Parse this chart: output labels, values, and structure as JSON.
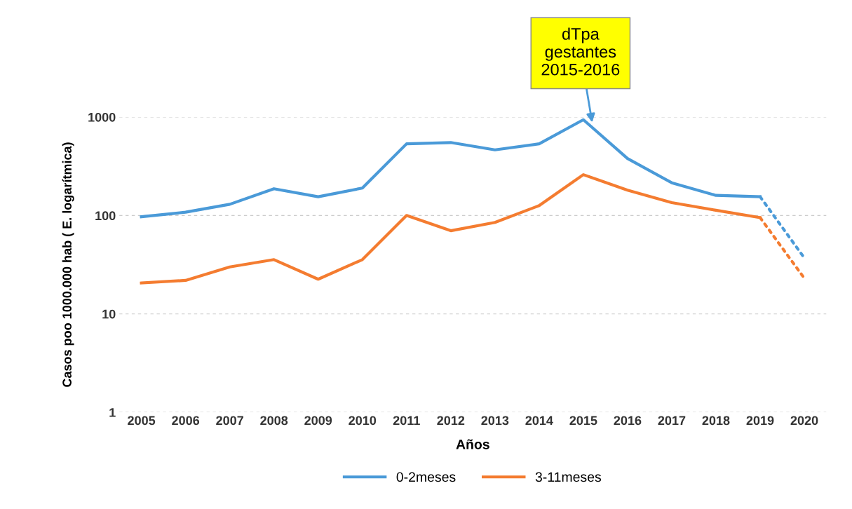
{
  "chart_data": {
    "type": "line",
    "xlabel": "Años",
    "ylabel": "Casos poo 1000.000 hab ( E. logarítmica)",
    "x": [
      2005,
      2006,
      2007,
      2008,
      2009,
      2010,
      2011,
      2012,
      2013,
      2014,
      2015,
      2016,
      2017,
      2018,
      2019,
      2020
    ],
    "series": [
      {
        "name": "0-2meses",
        "color": "#4a9ad8",
        "values": [
          97,
          108,
          130,
          187,
          155,
          190,
          535,
          551,
          464,
          535,
          940,
          379,
          215,
          160,
          155,
          null
        ]
      },
      {
        "name": "3-11meses",
        "color": "#f47c30",
        "values": [
          20.6,
          21.9,
          30,
          35.6,
          22.5,
          35.6,
          100,
          70,
          85,
          126,
          260,
          181,
          135,
          113,
          95,
          null
        ]
      },
      {
        "color": "#4a9ad8",
        "values": [
          null,
          null,
          null,
          null,
          null,
          null,
          null,
          null,
          null,
          null,
          null,
          null,
          null,
          null,
          155,
          37
        ],
        "line_style": "dotted"
      },
      {
        "color": "#f47c30",
        "values": [
          null,
          null,
          null,
          null,
          null,
          null,
          null,
          null,
          null,
          null,
          null,
          null,
          null,
          null,
          95,
          23
        ],
        "line_style": "dotted"
      }
    ],
    "log": "y",
    "ylim": [
      1,
      1000
    ],
    "yticks": [
      1,
      10,
      100,
      1000
    ],
    "xlim": [
      2004.5,
      2020.5
    ],
    "xticks": [
      2005,
      2006,
      2007,
      2008,
      2009,
      2010,
      2011,
      2012,
      2013,
      2014,
      2015,
      2016,
      2017,
      2018,
      2019,
      2020
    ],
    "grid": "y",
    "legend": "bottom",
    "line_style": "solid",
    "annotations": [
      {
        "text": "dTpa\ngestantes\n2015-2016",
        "x": 2015.2,
        "y": 880
      }
    ]
  }
}
